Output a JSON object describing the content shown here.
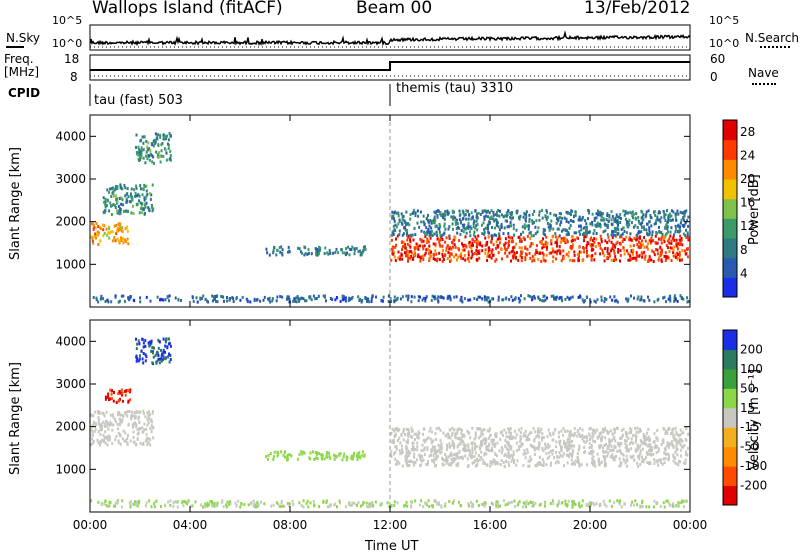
{
  "header": {
    "station": "Wallops Island (fitACF)",
    "beam": "Beam 00",
    "date": "13/Feb/2012"
  },
  "noise_panel": {
    "left_label": "N.Sky",
    "right_label": "N.Search",
    "left_ticks": [
      "10^5",
      "10^0"
    ],
    "right_ticks": [
      "10^5",
      "10^0"
    ]
  },
  "freq_panel": {
    "left_label_line1": "Freq.",
    "left_label_line2": "[MHz]",
    "right_label": "Nave",
    "left_ticks": [
      "18",
      "8"
    ],
    "right_ticks": [
      "60",
      "0"
    ]
  },
  "cpid": {
    "label": "CPID",
    "segments": [
      {
        "name": "tau (fast) 503",
        "start_hour": 0
      },
      {
        "name": "themis (tau) 3310",
        "start_hour": 12
      }
    ]
  },
  "colors": {
    "power_scale": [
      "#1a2ee6",
      "#2a5ab0",
      "#2e7a82",
      "#3a9a6a",
      "#7ec24a",
      "#f2c200",
      "#ff8a00",
      "#ff3a00",
      "#e00000"
    ],
    "velocity_scale": [
      "#e00000",
      "#ff4a00",
      "#ff8c00",
      "#f2b020",
      "#c8c8c0",
      "#8ad84a",
      "#3aa03a",
      "#2a7a60",
      "#1a2ee6"
    ]
  },
  "chart_data": [
    {
      "type": "heatmap",
      "title": "",
      "xlabel": "Time UT",
      "ylabel": "Slant Range [km]",
      "xlim": [
        0,
        24
      ],
      "ylim": [
        0,
        4500
      ],
      "x_ticks": [
        "00:00",
        "04:00",
        "08:00",
        "12:00",
        "16:00",
        "20:00",
        "00:00"
      ],
      "y_ticks": [
        "1000",
        "2000",
        "3000",
        "4000"
      ],
      "colorbar": {
        "label": "Power [dB]",
        "ticks": [
          "4",
          "8",
          "12",
          "16",
          "20",
          "24",
          "28"
        ],
        "range": [
          0,
          30
        ]
      },
      "echo_regions": [
        {
          "t_start": 0.0,
          "t_end": 1.5,
          "range_low": 1500,
          "range_high": 2000,
          "value": 20
        },
        {
          "t_start": 0.5,
          "t_end": 2.5,
          "range_low": 2200,
          "range_high": 2900,
          "value": 10
        },
        {
          "t_start": 1.8,
          "t_end": 3.2,
          "range_low": 3400,
          "range_high": 4100,
          "value": 10
        },
        {
          "t_start": 7.0,
          "t_end": 11.0,
          "range_low": 1250,
          "range_high": 1450,
          "value": 8
        },
        {
          "t_start": 12.0,
          "t_end": 23.9,
          "range_low": 1100,
          "range_high": 1700,
          "value": 26
        },
        {
          "t_start": 12.0,
          "t_end": 23.9,
          "range_low": 1700,
          "range_high": 2300,
          "value": 8
        },
        {
          "t_start": 0.0,
          "t_end": 23.9,
          "range_low": 150,
          "range_high": 300,
          "value": 6
        }
      ]
    },
    {
      "type": "heatmap",
      "title": "",
      "xlabel": "Time UT",
      "ylabel": "Slant Range [km]",
      "xlim": [
        0,
        24
      ],
      "ylim": [
        0,
        4500
      ],
      "x_ticks": [
        "00:00",
        "04:00",
        "08:00",
        "12:00",
        "16:00",
        "20:00",
        "00:00"
      ],
      "y_ticks": [
        "1000",
        "2000",
        "3000",
        "4000"
      ],
      "colorbar": {
        "label": "Velocity [m s⁻¹]",
        "ticks": [
          "200",
          "100",
          "50",
          "15",
          "-15",
          "-50",
          "-100",
          "-200"
        ],
        "range": [
          -250,
          250
        ]
      },
      "echo_regions": [
        {
          "t_start": 0.0,
          "t_end": 2.5,
          "range_low": 1600,
          "range_high": 2400,
          "value": 0
        },
        {
          "t_start": 0.5,
          "t_end": 1.6,
          "range_low": 2600,
          "range_high": 2900,
          "value": -200
        },
        {
          "t_start": 1.8,
          "t_end": 3.2,
          "range_low": 3500,
          "range_high": 4100,
          "value": 200
        },
        {
          "t_start": 7.0,
          "t_end": 11.0,
          "range_low": 1250,
          "range_high": 1450,
          "value": 60
        },
        {
          "t_start": 12.0,
          "t_end": 23.9,
          "range_low": 1100,
          "range_high": 2000,
          "value": 0
        },
        {
          "t_start": 0.0,
          "t_end": 23.9,
          "range_low": 150,
          "range_high": 300,
          "value": 30
        }
      ]
    }
  ]
}
